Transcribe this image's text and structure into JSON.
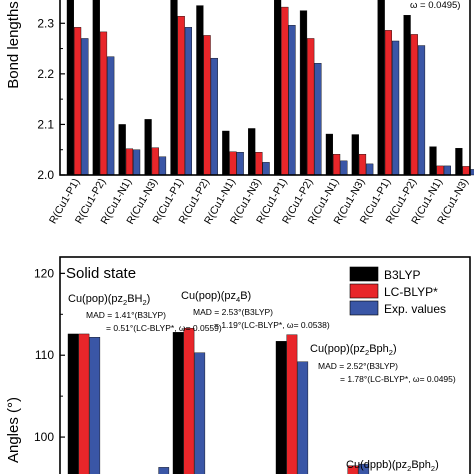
{
  "colors": {
    "b3lyp": "#000000",
    "lcblyp": "#e8262a",
    "exp": "#3a56a6"
  },
  "chart_data": [
    {
      "type": "bar",
      "ylabel": "Bond lengths",
      "ylim": [
        2.0,
        2.35
      ],
      "yticks": [
        "2.0",
        "2.1",
        "2.2",
        "2.3"
      ],
      "omega_fragment": "ω = 0.0495)",
      "categories": [
        "R(Cu1-P1)",
        "R(Cu1-P2)",
        "R(Cu1-N1)",
        "R(Cu1-N3)",
        "R(Cu1-P1)",
        "R(Cu1-P2)",
        "R(Cu1-N1)",
        "R(Cu1-N3)",
        "R(Cu1-P1)",
        "R(Cu1-P2)",
        "R(Cu1-N1)",
        "R(Cu1-N3)",
        "R(Cu1-P1)",
        "R(Cu1-P2)",
        "R(Cu1-N1)",
        "R(Cu1-N3)"
      ],
      "series": [
        {
          "key": "b3lyp",
          "values": [
            2.36,
            2.36,
            2.1,
            2.11,
            2.36,
            2.335,
            2.087,
            2.092,
            2.36,
            2.325,
            2.081,
            2.08,
            2.36,
            2.316,
            2.056,
            2.053
          ]
        },
        {
          "key": "lcblyp",
          "values": [
            2.292,
            2.283,
            2.052,
            2.054,
            2.314,
            2.276,
            2.046,
            2.045,
            2.332,
            2.27,
            2.041,
            2.041,
            2.286,
            2.278,
            2.018,
            2.017
          ]
        },
        {
          "key": "exp",
          "values": [
            2.27,
            2.234,
            2.05,
            2.036,
            2.292,
            2.231,
            2.045,
            2.025,
            2.296,
            2.221,
            2.028,
            2.022,
            2.265,
            2.256,
            2.018,
            2.011
          ]
        }
      ]
    },
    {
      "type": "bar",
      "title": "Solid state",
      "ylabel": "Angles (°)",
      "ylim": [
        95,
        122
      ],
      "yticks": [
        "100",
        "110",
        "120"
      ],
      "legend": {
        "position": "top-right",
        "entries": [
          {
            "key": "b3lyp",
            "label": "B3LYP"
          },
          {
            "key": "lcblyp",
            "label": "LC-BLYP*"
          },
          {
            "key": "exp",
            "label": "Exp. values"
          }
        ]
      },
      "groups": [
        {
          "b3lyp": 112.6,
          "lcblyp": 112.6,
          "exp": 112.2
        },
        {
          "b3lyp": 95.0,
          "lcblyp": 95.0,
          "exp": 96.3
        },
        {
          "b3lyp": 112.8,
          "lcblyp": 113.3,
          "exp": 110.3
        },
        {
          "b3lyp": 95.0,
          "lcblyp": 95.0,
          "exp": 95.0
        },
        {
          "b3lyp": 111.7,
          "lcblyp": 112.5,
          "exp": 109.2
        },
        {
          "b3lyp": 95.0,
          "lcblyp": 96.5,
          "exp": 96.7
        }
      ],
      "annotations": [
        {
          "compound": "Cu(pop)(pz",
          "compound_sub": "2",
          "compound_mid": "BH",
          "compound_sub2": "2",
          "compound_end": ")",
          "mad1": "MAD = 1.41°(B3LYP)",
          "mad2": "= 0.51°(LC-BLYP*, ω= 0.0559)"
        },
        {
          "compound": "Cu(pop)(pz",
          "compound_sub": "4",
          "compound_mid": "B)",
          "compound_sub2": "",
          "compound_end": "",
          "mad1": "MAD = 2.53°(B3LYP)",
          "mad2": "= 1.19°(LC-BLYP*, ω= 0.0538)"
        },
        {
          "compound": "Cu(pop)(pz",
          "compound_sub": "2",
          "compound_mid": "Bph",
          "compound_sub2": "2",
          "compound_end": ")",
          "mad1": "MAD = 2.52°(B3LYP)",
          "mad2": "= 1.78°(LC-BLYP*, ω= 0.0495)"
        },
        {
          "compound": "Cu(dppb)(pz",
          "compound_sub": "2",
          "compound_mid": "Bph",
          "compound_sub2": "2",
          "compound_end": ")",
          "mad1": "",
          "mad2": ""
        }
      ]
    }
  ]
}
